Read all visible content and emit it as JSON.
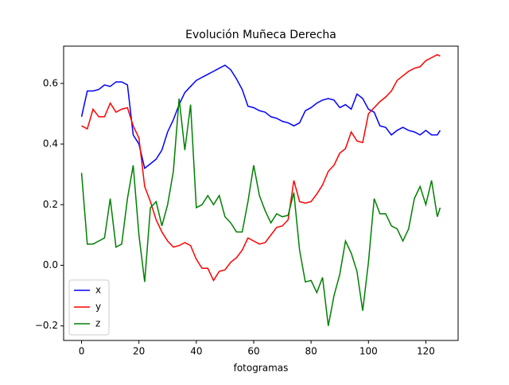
{
  "chart_data": {
    "type": "line",
    "title": "Evolución Muñeca Derecha",
    "xlabel": "fotogramas",
    "x": [
      0,
      2,
      4,
      6,
      8,
      10,
      12,
      14,
      16,
      18,
      20,
      22,
      24,
      26,
      28,
      30,
      32,
      34,
      36,
      38,
      40,
      42,
      44,
      46,
      48,
      50,
      52,
      54,
      56,
      58,
      60,
      62,
      64,
      66,
      68,
      70,
      72,
      74,
      76,
      78,
      80,
      82,
      84,
      86,
      88,
      90,
      92,
      94,
      96,
      98,
      100,
      102,
      104,
      106,
      108,
      110,
      112,
      114,
      116,
      118,
      120,
      122,
      124,
      125
    ],
    "series": [
      {
        "name": "x",
        "color": "#0000ff",
        "values": [
          0.49,
          0.575,
          0.575,
          0.58,
          0.595,
          0.59,
          0.605,
          0.605,
          0.595,
          0.43,
          0.4,
          0.32,
          0.335,
          0.35,
          0.38,
          0.44,
          0.48,
          0.53,
          0.57,
          0.59,
          0.61,
          0.62,
          0.63,
          0.64,
          0.65,
          0.66,
          0.645,
          0.615,
          0.58,
          0.525,
          0.52,
          0.51,
          0.505,
          0.49,
          0.485,
          0.475,
          0.47,
          0.46,
          0.47,
          0.51,
          0.52,
          0.535,
          0.545,
          0.55,
          0.545,
          0.52,
          0.53,
          0.515,
          0.565,
          0.55,
          0.515,
          0.505,
          0.46,
          0.455,
          0.43,
          0.445,
          0.455,
          0.445,
          0.44,
          0.43,
          0.445,
          0.43,
          0.43,
          0.445
        ]
      },
      {
        "name": "y",
        "color": "#ff0000",
        "values": [
          0.46,
          0.45,
          0.515,
          0.49,
          0.49,
          0.535,
          0.505,
          0.515,
          0.52,
          0.46,
          0.42,
          0.26,
          0.21,
          0.15,
          0.11,
          0.08,
          0.06,
          0.065,
          0.075,
          0.065,
          0.02,
          -0.01,
          -0.01,
          -0.05,
          -0.02,
          -0.015,
          0.01,
          0.025,
          0.05,
          0.09,
          0.08,
          0.07,
          0.075,
          0.1,
          0.125,
          0.13,
          0.15,
          0.28,
          0.21,
          0.205,
          0.21,
          0.235,
          0.265,
          0.31,
          0.33,
          0.37,
          0.385,
          0.44,
          0.41,
          0.405,
          0.5,
          0.52,
          0.54,
          0.555,
          0.575,
          0.61,
          0.625,
          0.64,
          0.65,
          0.655,
          0.675,
          0.685,
          0.695,
          0.69
        ]
      },
      {
        "name": "z",
        "color": "#008000",
        "values": [
          0.305,
          0.07,
          0.07,
          0.08,
          0.09,
          0.22,
          0.06,
          0.07,
          0.22,
          0.33,
          0.1,
          -0.055,
          0.19,
          0.21,
          0.13,
          0.2,
          0.31,
          0.55,
          0.38,
          0.53,
          0.19,
          0.2,
          0.23,
          0.2,
          0.23,
          0.16,
          0.14,
          0.11,
          0.11,
          0.21,
          0.33,
          0.23,
          0.18,
          0.14,
          0.17,
          0.16,
          0.165,
          0.24,
          0.05,
          -0.055,
          -0.05,
          -0.09,
          -0.04,
          -0.2,
          -0.1,
          -0.03,
          0.08,
          0.04,
          -0.02,
          -0.15,
          0.01,
          0.22,
          0.17,
          0.17,
          0.13,
          0.12,
          0.08,
          0.12,
          0.22,
          0.26,
          0.2,
          0.28,
          0.16,
          0.19
        ]
      }
    ],
    "xlim": [
      -6.25,
      131.25
    ],
    "xticks": [
      0,
      20,
      40,
      60,
      80,
      100,
      120
    ],
    "ylim": [
      -0.248,
      0.723
    ],
    "yticks": [
      {
        "value": -0.2,
        "label": "−0.2"
      },
      {
        "value": 0,
        "label": "0.0"
      },
      {
        "value": 0.2,
        "label": "0.2"
      },
      {
        "value": 0.4,
        "label": "0.4"
      },
      {
        "value": 0.6,
        "label": "0.6"
      }
    ],
    "legend": "lower left",
    "grid": false
  }
}
